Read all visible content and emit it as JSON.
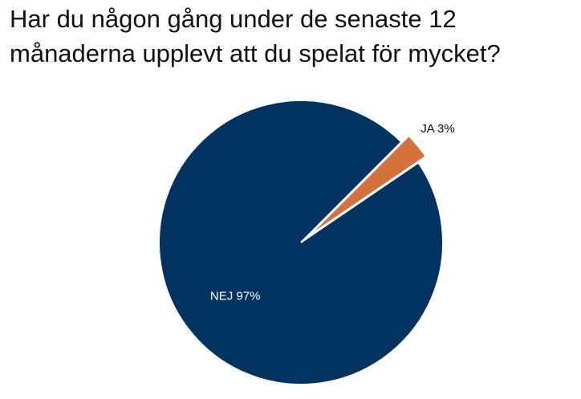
{
  "chart_data": {
    "type": "pie",
    "title": "Har du någon gång under de senaste 12 månaderna upplevt att du spelat för mycket?",
    "values": [
      3,
      97
    ],
    "value_labels": [
      "JA 3%",
      "NEJ 97%"
    ],
    "colors": [
      "#d4703a",
      "#003360"
    ]
  }
}
